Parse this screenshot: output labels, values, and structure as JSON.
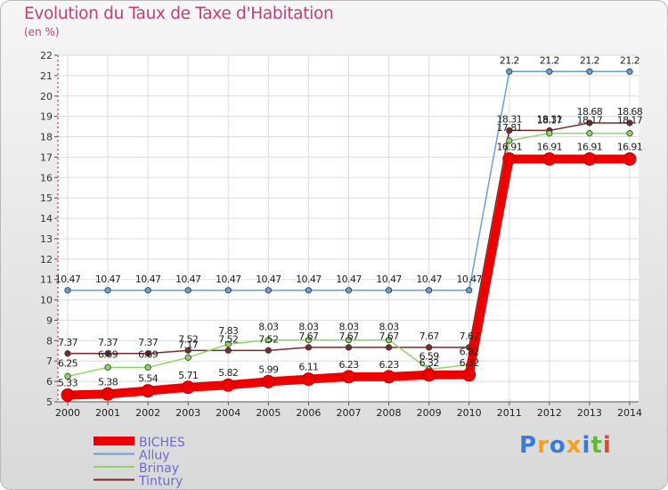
{
  "title": "Evolution du Taux de Taxe d'Habitation",
  "subtitle": "(en %)",
  "logo": {
    "text": "Proxiti",
    "colors": [
      "#3a7bd5",
      "#f4a11b",
      "#3a7bd5",
      "#f4a11b",
      "#3a7bd5",
      "#63b63a",
      "#e04a2a"
    ]
  },
  "chart_data": {
    "type": "line",
    "title": "Evolution du Taux de Taxe d'Habitation",
    "ylabel": "(en %)",
    "xlabel": "",
    "x": [
      "2000",
      "2001",
      "2002",
      "2003",
      "2004",
      "2005",
      "2006",
      "2007",
      "2008",
      "2009",
      "2010",
      "2011",
      "2012",
      "2013",
      "2014"
    ],
    "ylim": [
      5,
      22
    ],
    "yticks": [
      5,
      6,
      7,
      8,
      9,
      10,
      11,
      12,
      13,
      14,
      15,
      16,
      17,
      18,
      19,
      20,
      21,
      22
    ],
    "grid": true,
    "legend_position": "bottom-left",
    "series": [
      {
        "name": "BICHES",
        "color": "#ee0000",
        "values": [
          5.33,
          5.38,
          5.54,
          5.71,
          5.82,
          5.99,
          6.11,
          6.23,
          6.23,
          6.32,
          6.32,
          16.91,
          16.91,
          16.91,
          16.91
        ],
        "labels": [
          "5.33",
          "5.38",
          "5.54",
          "5.71",
          "5.82",
          "5.99",
          "6.11",
          "6.23",
          "6.23",
          "6.32",
          "6.32",
          "16.91",
          "16.91",
          "16.91",
          "16.91"
        ]
      },
      {
        "name": "Alluy",
        "color": "#6b9fd4",
        "values": [
          10.47,
          10.47,
          10.47,
          10.47,
          10.47,
          10.47,
          10.47,
          10.47,
          10.47,
          10.47,
          10.47,
          21.2,
          21.2,
          21.2,
          21.2
        ],
        "labels": [
          "10.47",
          "10.47",
          "10.47",
          "10.47",
          "10.47",
          "10.47",
          "10.47",
          "10.47",
          "10.47",
          "10.47",
          "10.47",
          "21.2",
          "21.2",
          "21.2",
          "21.2"
        ]
      },
      {
        "name": "Brinay",
        "color": "#8fd66a",
        "values": [
          6.25,
          6.69,
          6.69,
          7.17,
          7.83,
          8.03,
          8.03,
          8.03,
          8.03,
          6.59,
          6.82,
          17.81,
          18.17,
          18.17,
          18.17
        ],
        "labels": [
          "6.25",
          "6.69",
          "6.69",
          "7.17",
          "7.83",
          "8.03",
          "8.03",
          "8.03",
          "8.03",
          "6.59",
          "6.82",
          "17.81",
          "18.17",
          "18.17",
          "18.17"
        ]
      },
      {
        "name": "Tintury",
        "color": "#7b2a2a",
        "values": [
          7.37,
          7.37,
          7.37,
          7.52,
          7.52,
          7.52,
          7.67,
          7.67,
          7.67,
          7.67,
          7.67,
          18.31,
          18.31,
          18.68,
          18.68
        ],
        "labels": [
          "7.37",
          "7.37",
          "7.37",
          "7.52",
          "7.52",
          "7.52",
          "7.67",
          "7.67",
          "7.67",
          "7.67",
          "7.67",
          "18.31",
          "18.31",
          "18.68",
          "18.68"
        ]
      }
    ]
  }
}
